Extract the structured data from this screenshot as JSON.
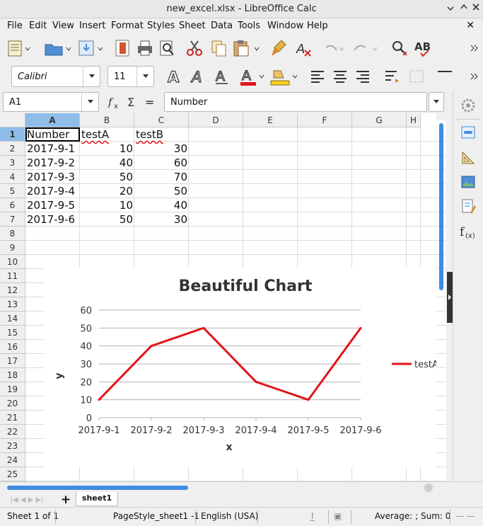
{
  "window": {
    "title": "new_excel.xlsx - LibreOffice Calc"
  },
  "menu": [
    "File",
    "Edit",
    "View",
    "Insert",
    "Format",
    "Styles",
    "Sheet",
    "Data",
    "Tools",
    "Window",
    "Help"
  ],
  "font": {
    "name": "Calibri",
    "size": "11"
  },
  "formula": {
    "cell_ref": "A1",
    "content": "Number"
  },
  "columns": [
    "A",
    "B",
    "C",
    "D",
    "E",
    "F",
    "G",
    "H"
  ],
  "rows": [
    "1",
    "2",
    "3",
    "4",
    "5",
    "6",
    "7",
    "8",
    "9",
    "10",
    "11",
    "12",
    "13",
    "14",
    "15",
    "16",
    "17",
    "18",
    "19",
    "20",
    "21",
    "22",
    "23",
    "24",
    "25"
  ],
  "cells": {
    "header": [
      "Number",
      "testA",
      "testB"
    ],
    "data": [
      [
        "2017-9-1",
        "10",
        "30"
      ],
      [
        "2017-9-2",
        "40",
        "60"
      ],
      [
        "2017-9-3",
        "50",
        "70"
      ],
      [
        "2017-9-4",
        "20",
        "50"
      ],
      [
        "2017-9-5",
        "10",
        "40"
      ],
      [
        "2017-9-6",
        "50",
        "30"
      ]
    ]
  },
  "chart_data": {
    "type": "line",
    "title": "Beautiful Chart",
    "xlabel": "x",
    "ylabel": "y",
    "categories": [
      "2017-9-1",
      "2017-9-2",
      "2017-9-3",
      "2017-9-4",
      "2017-9-5",
      "2017-9-6"
    ],
    "series": [
      {
        "name": "testA",
        "values": [
          10,
          40,
          50,
          20,
          10,
          50
        ],
        "color": "#e0161b"
      }
    ],
    "ylim": [
      0,
      60
    ],
    "yticks": [
      "0",
      "10",
      "20",
      "30",
      "40",
      "50",
      "60"
    ],
    "grid": true,
    "legend_position": "right"
  },
  "sheet_tabs": [
    "sheet1 -1"
  ],
  "status": {
    "sheet": "Sheet 1 of 1",
    "page_style": "PageStyle_sheet1 -1",
    "language": "English (USA)",
    "summary": "Average: ; Sum: 0"
  },
  "colors": {
    "selection": "#8fbde8",
    "accent_scroll": "#3d8de0",
    "chart_line": "#e0161b"
  }
}
